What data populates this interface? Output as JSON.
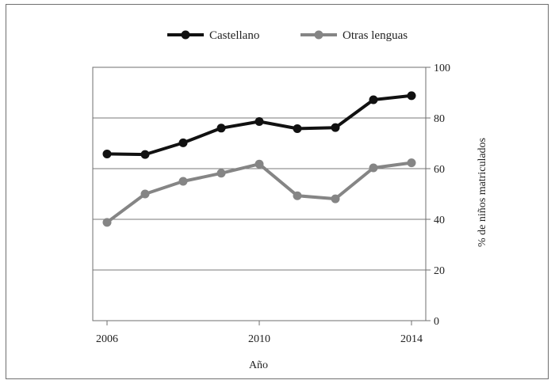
{
  "chart_data": {
    "type": "line",
    "x": [
      2006,
      2007,
      2008,
      2009,
      2010,
      2011,
      2012,
      2013,
      2014
    ],
    "xticks": [
      2006,
      2010,
      2014
    ],
    "xlabel": "Año",
    "ylabel": "% de niños matriculados",
    "ylim": [
      0,
      100
    ],
    "yticks": [
      0,
      20,
      40,
      60,
      80,
      100
    ],
    "grid": "horizontal",
    "legend_position": "top",
    "series": [
      {
        "name": "Castellano",
        "color": "#111111",
        "values": [
          65.8,
          65.6,
          70.2,
          76.0,
          78.6,
          75.8,
          76.2,
          87.2,
          88.8
        ]
      },
      {
        "name": "Otras lenguas",
        "color": "#858585",
        "values": [
          38.8,
          50.0,
          55.0,
          58.2,
          61.8,
          49.3,
          48.1,
          60.3,
          62.3
        ]
      }
    ]
  }
}
